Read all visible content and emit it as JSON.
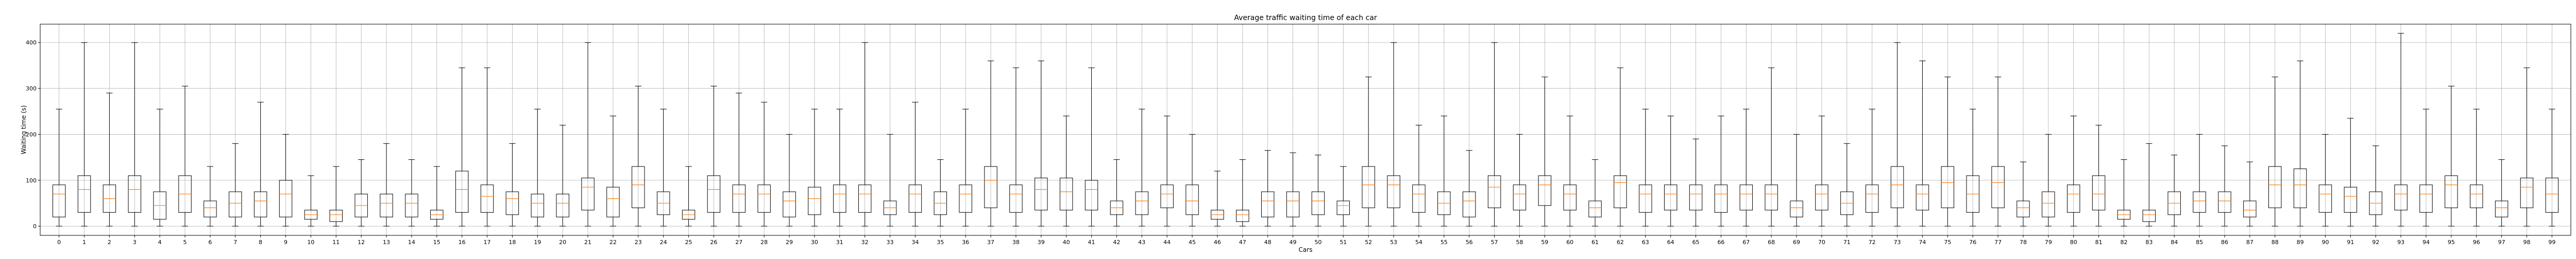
{
  "chart_data": {
    "type": "boxplot",
    "title": "Average traffic waiting time of each car",
    "xlabel": "Cars",
    "ylabel": "Waiting time (s)",
    "ylim": [
      -20,
      440
    ],
    "yticks": [
      0,
      100,
      200,
      300,
      400
    ],
    "grid": true,
    "median_color": "#ff7f0e",
    "box_color": "#000000",
    "categories": [
      "0",
      "1",
      "2",
      "3",
      "4",
      "5",
      "6",
      "7",
      "8",
      "9",
      "10",
      "11",
      "12",
      "13",
      "14",
      "15",
      "16",
      "17",
      "18",
      "19",
      "20",
      "21",
      "22",
      "23",
      "24",
      "25",
      "26",
      "27",
      "28",
      "29",
      "30",
      "31",
      "32",
      "33",
      "34",
      "35",
      "36",
      "37",
      "38",
      "39",
      "40",
      "41",
      "42",
      "43",
      "44",
      "45",
      "46",
      "47",
      "48",
      "49",
      "50",
      "51",
      "52",
      "53",
      "54",
      "55",
      "56",
      "57",
      "58",
      "59",
      "60",
      "61",
      "62",
      "63",
      "64",
      "65",
      "66",
      "67",
      "68",
      "69",
      "70",
      "71",
      "72",
      "73",
      "74",
      "75",
      "76",
      "77",
      "78",
      "79",
      "80",
      "81",
      "82",
      "83",
      "84",
      "85",
      "86",
      "87",
      "88",
      "89",
      "90",
      "91",
      "92",
      "93",
      "94",
      "95",
      "96",
      "97",
      "98",
      "99"
    ],
    "boxes": [
      {
        "whislo": 0,
        "q1": 20,
        "med": 70,
        "q3": 90,
        "whishi": 255
      },
      {
        "whislo": 0,
        "q1": 30,
        "med": 80,
        "q3": 110,
        "whishi": 400
      },
      {
        "whislo": 0,
        "q1": 30,
        "med": 60,
        "q3": 90,
        "whishi": 290
      },
      {
        "whislo": 0,
        "q1": 30,
        "med": 80,
        "q3": 110,
        "whishi": 400
      },
      {
        "whislo": 0,
        "q1": 15,
        "med": 45,
        "q3": 75,
        "whishi": 255
      },
      {
        "whislo": 0,
        "q1": 30,
        "med": 70,
        "q3": 110,
        "whishi": 305
      },
      {
        "whislo": 0,
        "q1": 20,
        "med": 40,
        "q3": 55,
        "whishi": 130
      },
      {
        "whislo": 0,
        "q1": 20,
        "med": 50,
        "q3": 75,
        "whishi": 180
      },
      {
        "whislo": 0,
        "q1": 20,
        "med": 55,
        "q3": 75,
        "whishi": 270
      },
      {
        "whislo": 0,
        "q1": 20,
        "med": 70,
        "q3": 100,
        "whishi": 200
      },
      {
        "whislo": 0,
        "q1": 15,
        "med": 25,
        "q3": 35,
        "whishi": 110
      },
      {
        "whislo": 0,
        "q1": 10,
        "med": 25,
        "q3": 35,
        "whishi": 130
      },
      {
        "whislo": 0,
        "q1": 20,
        "med": 45,
        "q3": 70,
        "whishi": 145
      },
      {
        "whislo": 0,
        "q1": 20,
        "med": 50,
        "q3": 70,
        "whishi": 180
      },
      {
        "whislo": 0,
        "q1": 20,
        "med": 50,
        "q3": 70,
        "whishi": 145
      },
      {
        "whislo": 0,
        "q1": 15,
        "med": 25,
        "q3": 35,
        "whishi": 130
      },
      {
        "whislo": 0,
        "q1": 30,
        "med": 80,
        "q3": 120,
        "whishi": 345
      },
      {
        "whislo": 0,
        "q1": 30,
        "med": 65,
        "q3": 90,
        "whishi": 345
      },
      {
        "whislo": 0,
        "q1": 25,
        "med": 60,
        "q3": 75,
        "whishi": 180
      },
      {
        "whislo": 0,
        "q1": 20,
        "med": 50,
        "q3": 70,
        "whishi": 255
      },
      {
        "whislo": 0,
        "q1": 20,
        "med": 50,
        "q3": 70,
        "whishi": 220
      },
      {
        "whislo": 0,
        "q1": 35,
        "med": 85,
        "q3": 105,
        "whishi": 400
      },
      {
        "whislo": 0,
        "q1": 20,
        "med": 60,
        "q3": 85,
        "whishi": 240
      },
      {
        "whislo": 0,
        "q1": 40,
        "med": 90,
        "q3": 130,
        "whishi": 305
      },
      {
        "whislo": 0,
        "q1": 25,
        "med": 50,
        "q3": 75,
        "whishi": 255
      },
      {
        "whislo": 0,
        "q1": 15,
        "med": 25,
        "q3": 35,
        "whishi": 130
      },
      {
        "whislo": 0,
        "q1": 30,
        "med": 80,
        "q3": 110,
        "whishi": 305
      },
      {
        "whislo": 0,
        "q1": 30,
        "med": 70,
        "q3": 90,
        "whishi": 290
      },
      {
        "whislo": 0,
        "q1": 30,
        "med": 70,
        "q3": 90,
        "whishi": 270
      },
      {
        "whislo": 0,
        "q1": 20,
        "med": 55,
        "q3": 75,
        "whishi": 200
      },
      {
        "whislo": 0,
        "q1": 25,
        "med": 60,
        "q3": 85,
        "whishi": 255
      },
      {
        "whislo": 0,
        "q1": 30,
        "med": 70,
        "q3": 90,
        "whishi": 255
      },
      {
        "whislo": 0,
        "q1": 30,
        "med": 70,
        "q3": 90,
        "whishi": 400
      },
      {
        "whislo": 0,
        "q1": 25,
        "med": 40,
        "q3": 55,
        "whishi": 200
      },
      {
        "whislo": 0,
        "q1": 30,
        "med": 70,
        "q3": 90,
        "whishi": 270
      },
      {
        "whislo": 0,
        "q1": 25,
        "med": 50,
        "q3": 75,
        "whishi": 145
      },
      {
        "whislo": 0,
        "q1": 30,
        "med": 70,
        "q3": 90,
        "whishi": 255
      },
      {
        "whislo": 0,
        "q1": 40,
        "med": 100,
        "q3": 130,
        "whishi": 360
      },
      {
        "whislo": 0,
        "q1": 30,
        "med": 70,
        "q3": 90,
        "whishi": 345
      },
      {
        "whislo": 0,
        "q1": 35,
        "med": 80,
        "q3": 105,
        "whishi": 360
      },
      {
        "whislo": 0,
        "q1": 35,
        "med": 75,
        "q3": 105,
        "whishi": 240
      },
      {
        "whislo": 0,
        "q1": 35,
        "med": 80,
        "q3": 100,
        "whishi": 345
      },
      {
        "whislo": 0,
        "q1": 25,
        "med": 40,
        "q3": 55,
        "whishi": 145
      },
      {
        "whislo": 0,
        "q1": 25,
        "med": 55,
        "q3": 75,
        "whishi": 255
      },
      {
        "whislo": 0,
        "q1": 40,
        "med": 70,
        "q3": 90,
        "whishi": 240
      },
      {
        "whislo": 0,
        "q1": 25,
        "med": 55,
        "q3": 90,
        "whishi": 200
      },
      {
        "whislo": 0,
        "q1": 15,
        "med": 25,
        "q3": 35,
        "whishi": 120
      },
      {
        "whislo": 0,
        "q1": 10,
        "med": 25,
        "q3": 35,
        "whishi": 145
      },
      {
        "whislo": 0,
        "q1": 20,
        "med": 55,
        "q3": 75,
        "whishi": 165
      },
      {
        "whislo": 0,
        "q1": 20,
        "med": 55,
        "q3": 75,
        "whishi": 160
      },
      {
        "whislo": 0,
        "q1": 25,
        "med": 55,
        "q3": 75,
        "whishi": 155
      },
      {
        "whislo": 0,
        "q1": 25,
        "med": 45,
        "q3": 55,
        "whishi": 130
      },
      {
        "whislo": 0,
        "q1": 40,
        "med": 90,
        "q3": 130,
        "whishi": 325
      },
      {
        "whislo": 0,
        "q1": 40,
        "med": 90,
        "q3": 110,
        "whishi": 400
      },
      {
        "whislo": 0,
        "q1": 30,
        "med": 70,
        "q3": 90,
        "whishi": 220
      },
      {
        "whislo": 0,
        "q1": 25,
        "med": 50,
        "q3": 75,
        "whishi": 240
      },
      {
        "whislo": 0,
        "q1": 20,
        "med": 55,
        "q3": 75,
        "whishi": 165
      },
      {
        "whislo": 0,
        "q1": 40,
        "med": 85,
        "q3": 110,
        "whishi": 400
      },
      {
        "whislo": 0,
        "q1": 35,
        "med": 70,
        "q3": 90,
        "whishi": 200
      },
      {
        "whislo": 0,
        "q1": 45,
        "med": 90,
        "q3": 110,
        "whishi": 325
      },
      {
        "whislo": 0,
        "q1": 35,
        "med": 70,
        "q3": 90,
        "whishi": 240
      },
      {
        "whislo": 0,
        "q1": 20,
        "med": 40,
        "q3": 55,
        "whishi": 145
      },
      {
        "whislo": 0,
        "q1": 40,
        "med": 95,
        "q3": 110,
        "whishi": 345
      },
      {
        "whislo": 0,
        "q1": 30,
        "med": 70,
        "q3": 90,
        "whishi": 255
      },
      {
        "whislo": 0,
        "q1": 35,
        "med": 70,
        "q3": 90,
        "whishi": 240
      },
      {
        "whislo": 0,
        "q1": 35,
        "med": 70,
        "q3": 90,
        "whishi": 190
      },
      {
        "whislo": 0,
        "q1": 30,
        "med": 70,
        "q3": 90,
        "whishi": 240
      },
      {
        "whislo": 0,
        "q1": 35,
        "med": 70,
        "q3": 90,
        "whishi": 255
      },
      {
        "whislo": 0,
        "q1": 35,
        "med": 70,
        "q3": 90,
        "whishi": 345
      },
      {
        "whislo": 0,
        "q1": 20,
        "med": 40,
        "q3": 55,
        "whishi": 200
      },
      {
        "whislo": 0,
        "q1": 35,
        "med": 70,
        "q3": 90,
        "whishi": 240
      },
      {
        "whislo": 0,
        "q1": 25,
        "med": 50,
        "q3": 75,
        "whishi": 180
      },
      {
        "whislo": 0,
        "q1": 30,
        "med": 70,
        "q3": 90,
        "whishi": 255
      },
      {
        "whislo": 0,
        "q1": 40,
        "med": 90,
        "q3": 130,
        "whishi": 400
      },
      {
        "whislo": 0,
        "q1": 35,
        "med": 70,
        "q3": 90,
        "whishi": 360
      },
      {
        "whislo": 0,
        "q1": 40,
        "med": 95,
        "q3": 130,
        "whishi": 325
      },
      {
        "whislo": 0,
        "q1": 30,
        "med": 70,
        "q3": 110,
        "whishi": 255
      },
      {
        "whislo": 0,
        "q1": 40,
        "med": 95,
        "q3": 130,
        "whishi": 325
      },
      {
        "whislo": 0,
        "q1": 20,
        "med": 40,
        "q3": 55,
        "whishi": 140
      },
      {
        "whislo": 0,
        "q1": 20,
        "med": 50,
        "q3": 75,
        "whishi": 200
      },
      {
        "whislo": 0,
        "q1": 30,
        "med": 70,
        "q3": 90,
        "whishi": 240
      },
      {
        "whislo": 0,
        "q1": 35,
        "med": 70,
        "q3": 110,
        "whishi": 220
      },
      {
        "whislo": 0,
        "q1": 15,
        "med": 25,
        "q3": 35,
        "whishi": 145
      },
      {
        "whislo": 0,
        "q1": 10,
        "med": 25,
        "q3": 35,
        "whishi": 180
      },
      {
        "whislo": 0,
        "q1": 25,
        "med": 50,
        "q3": 75,
        "whishi": 155
      },
      {
        "whislo": 0,
        "q1": 30,
        "med": 55,
        "q3": 75,
        "whishi": 200
      },
      {
        "whislo": 0,
        "q1": 30,
        "med": 55,
        "q3": 75,
        "whishi": 175
      },
      {
        "whislo": 0,
        "q1": 20,
        "med": 35,
        "q3": 55,
        "whishi": 140
      },
      {
        "whislo": 0,
        "q1": 40,
        "med": 90,
        "q3": 130,
        "whishi": 325
      },
      {
        "whislo": 0,
        "q1": 40,
        "med": 90,
        "q3": 125,
        "whishi": 360
      },
      {
        "whislo": 0,
        "q1": 30,
        "med": 70,
        "q3": 90,
        "whishi": 200
      },
      {
        "whislo": 0,
        "q1": 30,
        "med": 65,
        "q3": 85,
        "whishi": 235
      },
      {
        "whislo": 0,
        "q1": 25,
        "med": 50,
        "q3": 75,
        "whishi": 175
      },
      {
        "whislo": 0,
        "q1": 35,
        "med": 70,
        "q3": 90,
        "whishi": 420
      },
      {
        "whislo": 0,
        "q1": 30,
        "med": 70,
        "q3": 90,
        "whishi": 255
      },
      {
        "whislo": 0,
        "q1": 40,
        "med": 90,
        "q3": 110,
        "whishi": 305
      },
      {
        "whislo": 0,
        "q1": 40,
        "med": 70,
        "q3": 90,
        "whishi": 255
      },
      {
        "whislo": 0,
        "q1": 20,
        "med": 40,
        "q3": 55,
        "whishi": 145
      },
      {
        "whislo": 0,
        "q1": 40,
        "med": 85,
        "q3": 105,
        "whishi": 345
      },
      {
        "whislo": 0,
        "q1": 30,
        "med": 70,
        "q3": 105,
        "whishi": 255
      }
    ]
  }
}
